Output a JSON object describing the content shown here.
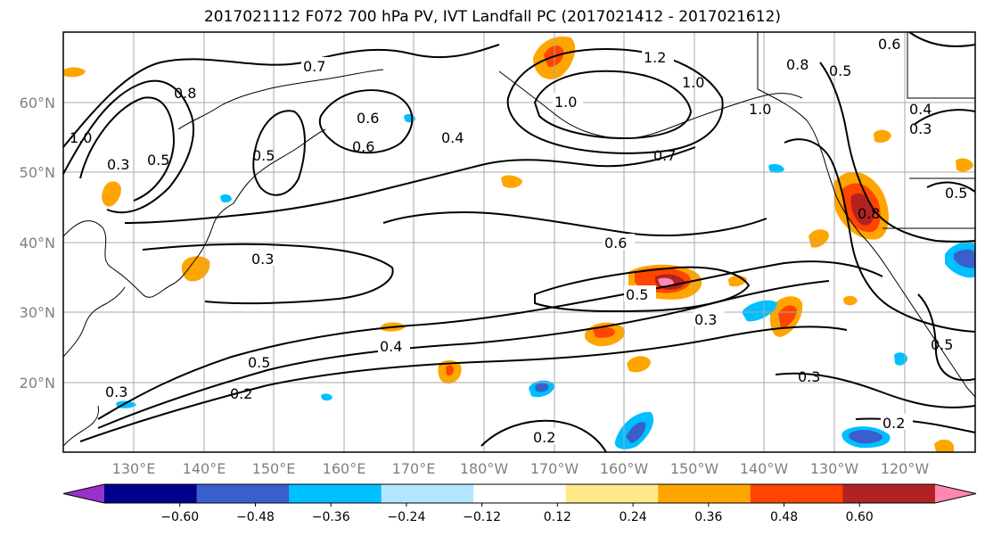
{
  "title": "2017021112 F072 700 hPa PV, IVT Landfall PC (2017021412 - 2017021612)",
  "lat_ticks": [
    "20°N",
    "30°N",
    "40°N",
    "50°N",
    "60°N"
  ],
  "lon_ticks": [
    "130°E",
    "140°E",
    "150°E",
    "160°E",
    "170°E",
    "180°W",
    "170°W",
    "160°W",
    "150°W",
    "140°W",
    "130°W",
    "120°W"
  ],
  "colorbar": {
    "colors": [
      "#9932cc",
      "#00008b",
      "#3a5fcd",
      "#00bfff",
      "#b2e6ff",
      "#ffffff",
      "#ffe98a",
      "#ffa500",
      "#ff4500",
      "#b22222",
      "#ff88b3"
    ],
    "labels": [
      "−0.60",
      "−0.48",
      "−0.36",
      "−0.24",
      "−0.12",
      "0.12",
      "0.24",
      "0.36",
      "0.48",
      "0.60"
    ]
  },
  "contour_labels": [
    "0.7",
    "1.2",
    "1.0",
    "1.0",
    "0.8",
    "0.6",
    "0.5",
    "0.3",
    "0.4",
    "0.6",
    "0.6",
    "0.7",
    "0.3",
    "0.5",
    "0.3",
    "0.5",
    "0.4",
    "0.5",
    "0.3",
    "0.2",
    "0.2",
    "0.3",
    "0.2",
    "0.5",
    "0.3",
    "0.8",
    "1.0",
    "0.8",
    "1.0",
    "0.5",
    "0.6",
    "0.4",
    "0.5"
  ],
  "colors": {
    "positive_strong": "#b22222",
    "positive": "#ff4500",
    "positive_light": "#ffa500",
    "negative": "#00bfff",
    "negative_strong": "#3a5fcd"
  }
}
